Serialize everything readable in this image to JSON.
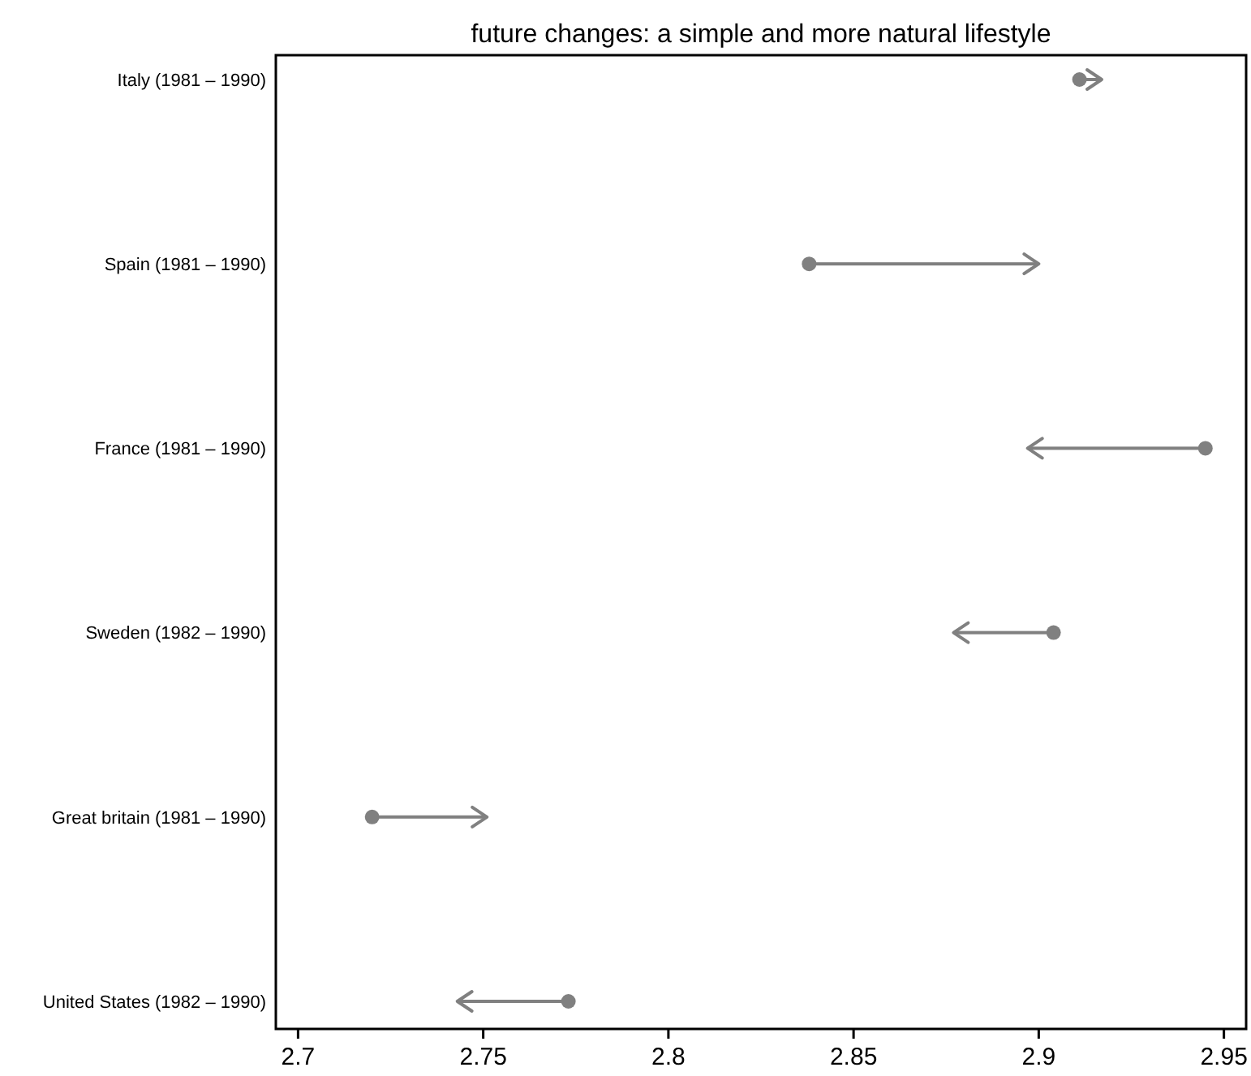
{
  "chart_data": {
    "type": "bar",
    "orientation": "horizontal",
    "title": "future changes: a simple and more natural lifestyle",
    "categories": [
      "Italy (1981 – 1990)",
      "Spain (1981 – 1990)",
      "France (1981 – 1990)",
      "Sweden (1982 – 1990)",
      "Great britain (1981 – 1990)",
      "United States (1982 – 1990)"
    ],
    "base": [
      2.911,
      2.838,
      2.945,
      2.904,
      2.72,
      2.773
    ],
    "values": [
      0.006,
      0.062,
      -0.048,
      -0.027,
      0.031,
      -0.03
    ],
    "color": "#808080",
    "xlim": [
      2.694,
      2.956
    ],
    "xticks": [
      2.7,
      2.75,
      2.8,
      2.85,
      2.9,
      2.95
    ],
    "grid": false
  }
}
